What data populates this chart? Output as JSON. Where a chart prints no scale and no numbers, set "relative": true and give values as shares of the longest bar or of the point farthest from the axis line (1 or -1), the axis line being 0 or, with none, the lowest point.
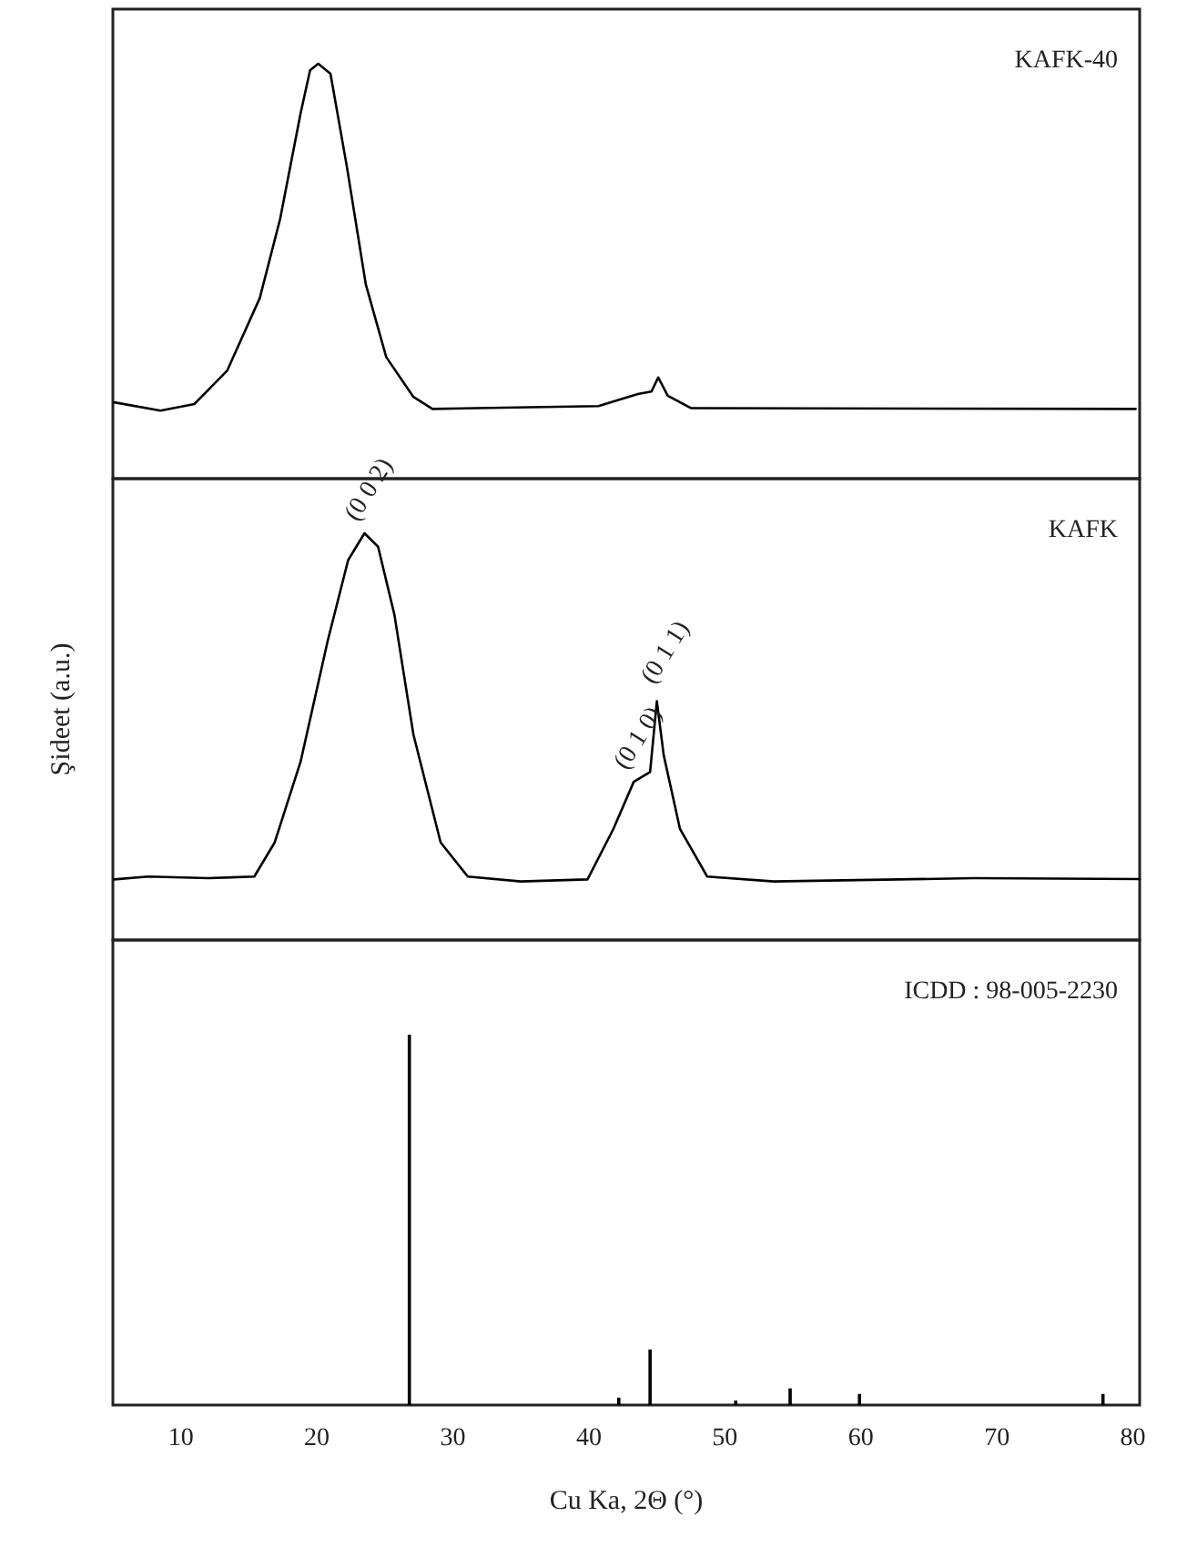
{
  "chart_data": [
    {
      "type": "line",
      "relative": true,
      "xlim": [
        5,
        80.5
      ],
      "tick_labels": false,
      "series": [
        {
          "name": "KAFK-40",
          "color": "#000000",
          "x": [
            5.1,
            8.5,
            11.0,
            13.4,
            15.8,
            17.3,
            18.8,
            19.5,
            20.1,
            21.0,
            22.2,
            23.6,
            25.1,
            27.1,
            28.5,
            40.7,
            43.6,
            44.6,
            45.1,
            45.8,
            47.5,
            80.2
          ],
          "values": [
            0.184,
            0.164,
            0.18,
            0.26,
            0.435,
            0.626,
            0.88,
            0.984,
            1,
            0.976,
            0.753,
            0.468,
            0.293,
            0.197,
            0.168,
            0.175,
            0.204,
            0.21,
            0.244,
            0.2,
            0.17,
            0.168
          ]
        }
      ]
    },
    {
      "type": "line",
      "relative": true,
      "xlim": [
        5,
        80.5
      ],
      "tick_labels": false,
      "ylabel": "Şideet (a.u.)",
      "series": [
        {
          "name": "KAFK",
          "color": "#000000",
          "x": [
            5.1,
            7.6,
            12.0,
            15.4,
            16.9,
            18.8,
            20.8,
            22.3,
            23.5,
            24.5,
            25.7,
            27.1,
            29.1,
            31.1,
            35.0,
            39.9,
            41.8,
            43.3,
            44.5,
            45.0,
            45.5,
            46.7,
            48.7,
            53.6,
            68.3,
            80.5
          ],
          "values": [
            0.149,
            0.156,
            0.152,
            0.156,
            0.24,
            0.438,
            0.736,
            0.934,
            1,
            0.967,
            0.8,
            0.505,
            0.24,
            0.156,
            0.144,
            0.149,
            0.273,
            0.389,
            0.413,
            0.587,
            0.455,
            0.273,
            0.156,
            0.144,
            0.152,
            0.15
          ]
        }
      ],
      "annotations": [
        {
          "text": "(0 0 2)",
          "x": 23.5,
          "y": 1
        },
        {
          "text": "(0 1 0)",
          "x": 43.3,
          "y": 0.389
        },
        {
          "text": "(0 1 1)",
          "x": 45.3,
          "y": 0.6
        }
      ]
    },
    {
      "type": "bar",
      "relative": true,
      "xlim": [
        5,
        80.5
      ],
      "xticks": [
        10,
        20,
        30,
        40,
        50,
        60,
        70,
        80
      ],
      "tick_labels": "x",
      "xlabel": "Cu Ka, 2Θ (°)",
      "series": [
        {
          "name": "ICDD : 98-005-2230",
          "color": "#000000",
          "x": [
            26.8,
            42.2,
            44.5,
            50.8,
            54.8,
            59.9,
            77.8
          ],
          "values": [
            1,
            0.02,
            0.15,
            0.012,
            0.045,
            0.03,
            0.03
          ]
        }
      ]
    }
  ]
}
